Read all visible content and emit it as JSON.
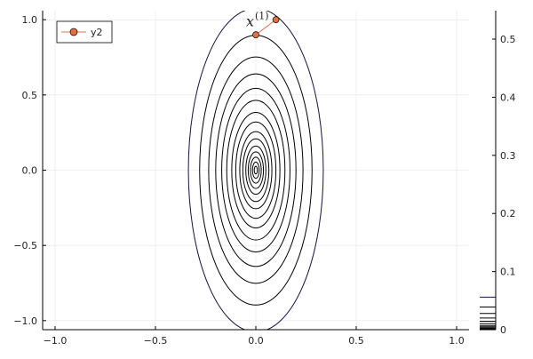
{
  "chart_data": {
    "type": "contour",
    "xlim": [
      -1.062,
      1.062
    ],
    "ylim": [
      -1.06,
      1.06
    ],
    "xticks": [
      {
        "value": -1,
        "label": "−1.0"
      },
      {
        "value": -0.5,
        "label": "−0.5"
      },
      {
        "value": 0,
        "label": "0.0"
      },
      {
        "value": 0.5,
        "label": "0.5"
      },
      {
        "value": 1,
        "label": "1.0"
      }
    ],
    "yticks": [
      {
        "value": -1,
        "label": "−1.0"
      },
      {
        "value": -0.5,
        "label": "−0.5"
      },
      {
        "value": 0,
        "label": "0.0"
      },
      {
        "value": 0.5,
        "label": "0.5"
      },
      {
        "value": 1,
        "label": "1.0"
      }
    ],
    "grid": true,
    "contours": {
      "color": "#000000",
      "outer_color": "#1b1044",
      "levels": [
        0.056,
        0.039,
        0.028,
        0.02,
        0.0145,
        0.0105,
        0.0072,
        0.005,
        0.0032,
        0.0021,
        0.0013,
        0.0007,
        0.0004,
        0.00015,
        3e-05
      ],
      "rx": [
        0.336,
        0.28,
        0.235,
        0.2,
        0.17,
        0.145,
        0.12,
        0.1,
        0.08,
        0.065,
        0.05,
        0.038,
        0.027,
        0.017,
        0.008
      ],
      "ry": [
        1.075,
        0.896,
        0.752,
        0.64,
        0.544,
        0.464,
        0.384,
        0.32,
        0.256,
        0.208,
        0.16,
        0.122,
        0.086,
        0.054,
        0.026
      ]
    },
    "colorbar": {
      "lim": [
        0,
        0.549
      ],
      "ticks": [
        0,
        0.1,
        0.2,
        0.3,
        0.4,
        0.5
      ]
    },
    "series": [
      {
        "name": "y2",
        "color": "#e26f46",
        "x": [
          0.1,
          0.0
        ],
        "y": [
          1.0,
          0.9
        ]
      }
    ],
    "legend": "top-left",
    "annotation": {
      "text": "x",
      "superscript": "(1)",
      "x": 0.0,
      "y": 0.985
    }
  }
}
